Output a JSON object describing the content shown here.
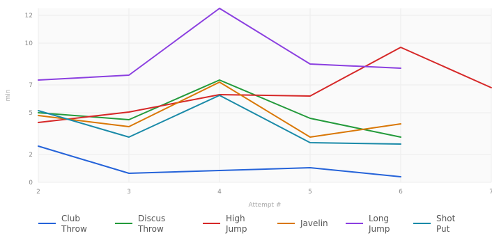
{
  "chart_data": {
    "type": "line",
    "title": "",
    "xlabel": "Attempt #",
    "ylabel": "min",
    "x_ticks": [
      "2",
      "3",
      "4",
      "5",
      "6",
      "7"
    ],
    "y_ticks": [
      "0",
      "2",
      "5",
      "7",
      "10",
      "12"
    ],
    "xlim": [
      2,
      7
    ],
    "ylim": [
      0,
      12.5
    ],
    "grid": true,
    "legend_position": "bottom",
    "series": [
      {
        "name": "Club Throw",
        "label_lines": [
          "Club",
          "Throw"
        ],
        "color": "#2563d9",
        "x": [
          2,
          3,
          4,
          5,
          6
        ],
        "y": [
          2.6,
          0.65,
          0.85,
          1.05,
          0.4
        ]
      },
      {
        "name": "Discus Throw",
        "label_lines": [
          "Discus",
          "Throw"
        ],
        "color": "#239a3b",
        "x": [
          2,
          3,
          4,
          5,
          6
        ],
        "y": [
          5.0,
          4.5,
          7.35,
          4.6,
          3.25
        ]
      },
      {
        "name": "High Jump",
        "label_lines": [
          "High",
          "Jump"
        ],
        "color": "#d62828",
        "x": [
          2,
          3,
          4,
          5,
          6,
          7
        ],
        "y": [
          4.3,
          5.05,
          6.3,
          6.2,
          9.7,
          6.8
        ]
      },
      {
        "name": "Javelin",
        "label_lines": [
          "Javelin"
        ],
        "color": "#d97706",
        "x": [
          2,
          3,
          4,
          5,
          6
        ],
        "y": [
          4.8,
          4.0,
          7.2,
          3.25,
          4.2
        ]
      },
      {
        "name": "Long Jump",
        "label_lines": [
          "Long",
          "Jump"
        ],
        "color": "#8b3fe0",
        "x": [
          2,
          3,
          4,
          5,
          6
        ],
        "y": [
          7.35,
          7.7,
          12.5,
          8.5,
          8.2
        ]
      },
      {
        "name": "Shot Put",
        "label_lines": [
          "Shot",
          "Put"
        ],
        "color": "#1a8aa8",
        "x": [
          2,
          3,
          4,
          5,
          6
        ],
        "y": [
          5.15,
          3.25,
          6.25,
          2.85,
          2.75
        ]
      }
    ]
  }
}
